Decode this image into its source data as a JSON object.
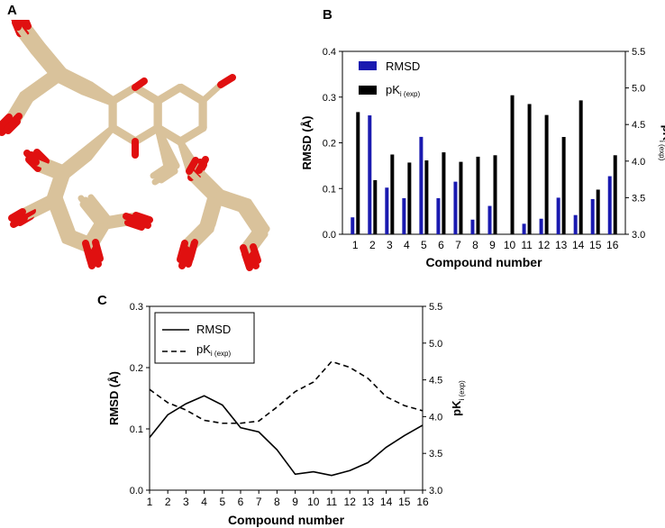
{
  "panels": {
    "a": "A",
    "b": "B",
    "c": "C"
  },
  "molecule_figure": {
    "description_icon": "molecular-overlay-image",
    "colors": {
      "carbon": "#d9c29b",
      "oxygen": "#e01010"
    }
  },
  "chart_data": [
    {
      "type": "bar",
      "panel": "B",
      "categories": [
        "1",
        "2",
        "3",
        "4",
        "5",
        "6",
        "7",
        "8",
        "9",
        "10",
        "11",
        "12",
        "13",
        "14",
        "15",
        "16"
      ],
      "xlabel": "Compound number",
      "ylabel_left": "RMSD (Å)",
      "ylabel_right_main": "pK",
      "ylabel_right_sub": "i (exp)",
      "left_ylim": [
        0,
        0.4
      ],
      "left_ticks": [
        "0.0",
        "0.1",
        "0.2",
        "0.3",
        "0.4"
      ],
      "right_ylim": [
        3.0,
        5.5
      ],
      "right_ticks": [
        "3.0",
        "3.5",
        "4.0",
        "4.5",
        "5.0",
        "5.5"
      ],
      "legend_position": "top-left",
      "series": [
        {
          "name": "RMSD",
          "axis": "left",
          "color": "#1a1ab0",
          "values": [
            0.037,
            0.26,
            0.102,
            0.079,
            0.213,
            0.079,
            0.115,
            0.032,
            0.062,
            0.0,
            0.023,
            0.034,
            0.08,
            0.042,
            0.077,
            0.127
          ]
        },
        {
          "name_main": "pK",
          "name_sub": "i (exp)",
          "axis": "right",
          "color": "#000000",
          "values": [
            4.67,
            3.74,
            4.09,
            3.98,
            4.01,
            4.12,
            3.99,
            4.06,
            4.08,
            4.9,
            4.78,
            4.63,
            4.33,
            4.83,
            3.61,
            4.08
          ]
        }
      ]
    },
    {
      "type": "line",
      "panel": "C",
      "x": [
        1,
        2,
        3,
        4,
        5,
        6,
        7,
        8,
        9,
        10,
        11,
        12,
        13,
        14,
        15,
        16
      ],
      "x_ticks": [
        "1",
        "2",
        "3",
        "4",
        "5",
        "6",
        "7",
        "8",
        "9",
        "10",
        "11",
        "12",
        "13",
        "14",
        "15",
        "16"
      ],
      "xlabel": "Compound number",
      "ylabel_left": "RMSD (Å)",
      "ylabel_right_main": "pK",
      "ylabel_right_sub": "i (exp)",
      "left_ylim": [
        0,
        0.3
      ],
      "left_ticks": [
        "0.0",
        "0.1",
        "0.2",
        "0.3"
      ],
      "right_ylim": [
        3.0,
        5.5
      ],
      "right_ticks": [
        "3.0",
        "3.5",
        "4.0",
        "4.5",
        "5.0",
        "5.5"
      ],
      "legend_position": "top-left",
      "series": [
        {
          "name": "RMSD",
          "axis": "left",
          "style": "solid",
          "values": [
            0.086,
            0.123,
            0.141,
            0.154,
            0.139,
            0.102,
            0.095,
            0.066,
            0.026,
            0.03,
            0.024,
            0.032,
            0.045,
            0.07,
            0.089,
            0.106
          ]
        },
        {
          "name_main": "pK",
          "name_sub": "i (exp)",
          "axis": "right",
          "style": "dashed",
          "values": [
            4.37,
            4.19,
            4.09,
            3.95,
            3.91,
            3.91,
            3.94,
            4.13,
            4.34,
            4.47,
            4.75,
            4.67,
            4.52,
            4.27,
            4.15,
            4.08
          ]
        }
      ]
    }
  ]
}
